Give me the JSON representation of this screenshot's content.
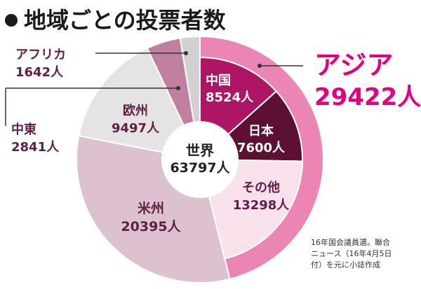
{
  "chart_data": {
    "type": "pie",
    "title": "地域ごとの投票者数",
    "total": {
      "label": "世界",
      "value_text": "63797人",
      "value": 63797
    },
    "slices": [
      {
        "name": "アジア",
        "value_text": "29422人",
        "value": 29422,
        "color": "#eb86b4",
        "ring": "outer"
      },
      {
        "name": "中国",
        "value_text": "8524人",
        "value": 8524,
        "color": "#ad1664",
        "ring": "inner"
      },
      {
        "name": "日本",
        "value_text": "7600人",
        "value": 7600,
        "color": "#5c1032",
        "ring": "inner"
      },
      {
        "name": "その他",
        "value_text": "13298人",
        "value": 13298,
        "color": "#f9e1ec",
        "ring": "inner"
      },
      {
        "name": "米州",
        "value_text": "20395人",
        "value": 20395,
        "color": "#dcc2cf",
        "ring": "outer"
      },
      {
        "name": "欧州",
        "value_text": "9497人",
        "value": 9497,
        "color": "#e6e3e4",
        "ring": "outer"
      },
      {
        "name": "中東",
        "value_text": "2841人",
        "value": 2841,
        "color": "#c07f9e",
        "ring": "outer"
      },
      {
        "name": "アフリカ",
        "value_text": "1642人",
        "value": 1642,
        "color": "#d2d0d1",
        "ring": "outer"
      }
    ],
    "note": [
      "16年国会議員選。聯合",
      "ニュース（16年4月5日",
      "付）を元に小誌作成"
    ]
  }
}
